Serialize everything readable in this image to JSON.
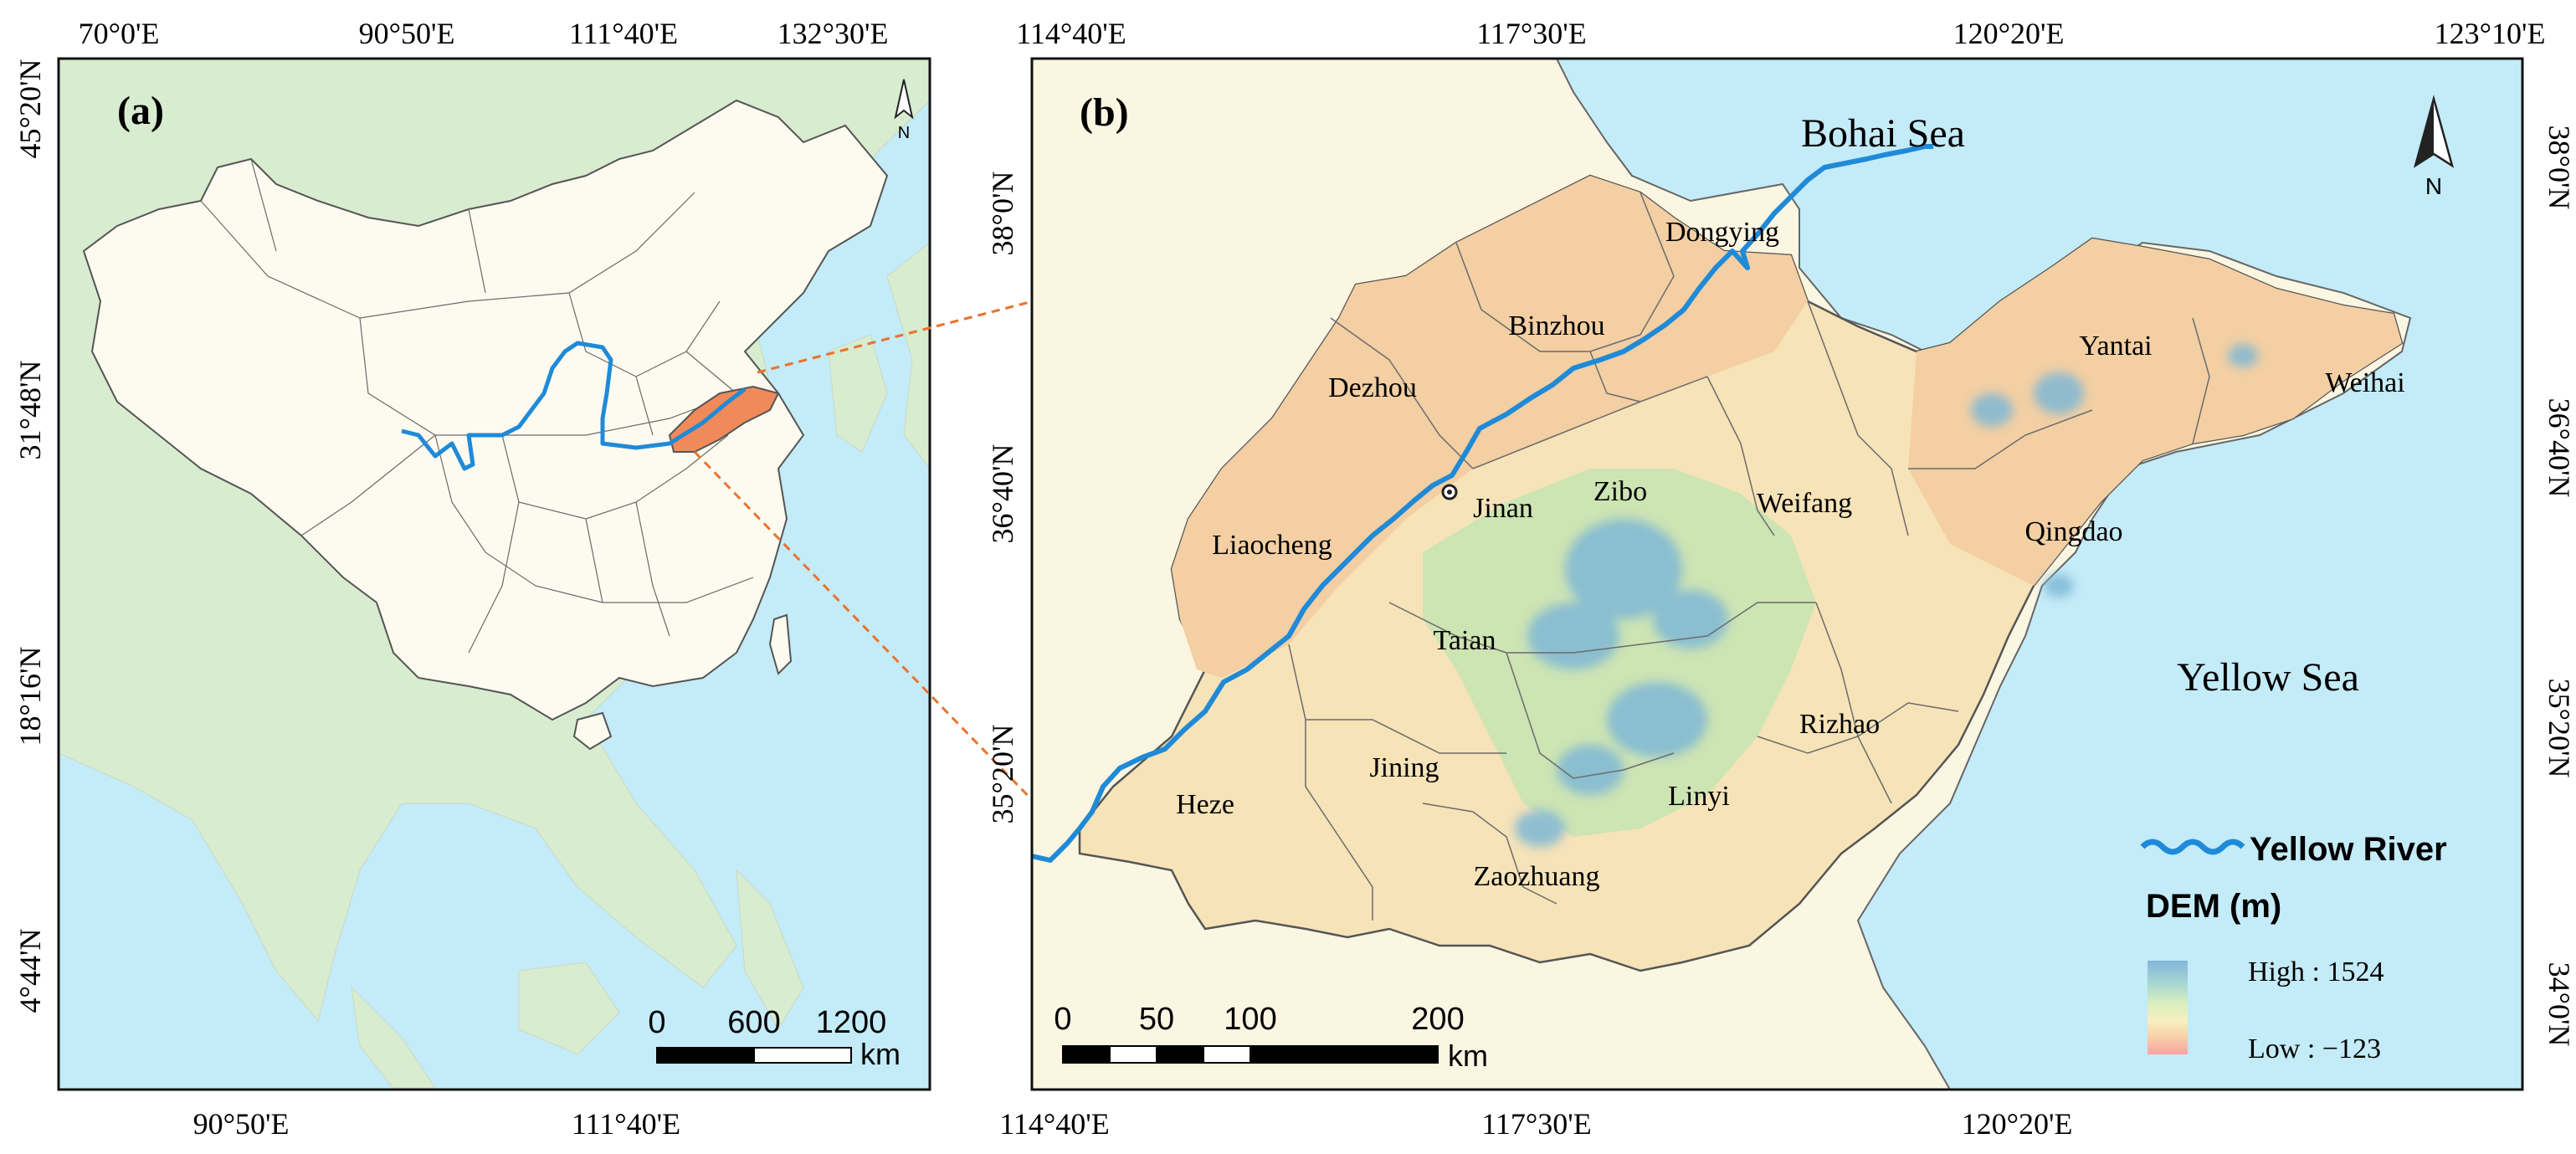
{
  "panel_a": {
    "label": "(a)",
    "top_lon_labels": [
      "70°0'E",
      "90°50'E",
      "111°40'E",
      "132°30'E"
    ],
    "bottom_lon_labels": [
      "90°50'E",
      "111°40'E"
    ],
    "left_lat_labels": [
      "45°20'N",
      "31°48'N",
      "18°16'N",
      "4°44'N"
    ],
    "north_label": "N",
    "scale_ticks": [
      "0",
      "600",
      "1200"
    ],
    "scale_unit": "km",
    "colors": {
      "land": "#fdfbf0",
      "sea": "#c4ebf8",
      "foreign_land": "#d8ecd0",
      "shandong": "#f08a5a",
      "river": "#1f8ad8"
    }
  },
  "panel_b": {
    "label": "(b)",
    "top_lon_labels": [
      "114°40'E",
      "117°30'E",
      "120°20'E",
      "123°10'E"
    ],
    "bottom_lon_labels": [
      "114°40'E",
      "117°30'E",
      "120°20'E"
    ],
    "left_lat_labels": [
      "38°0'N",
      "36°40'N",
      "35°20'N"
    ],
    "right_lat_labels": [
      "38°0'N",
      "36°40'N",
      "35°20'N",
      "34°0'N"
    ],
    "seas": [
      "Bohai Sea",
      "Yellow Sea"
    ],
    "cities": [
      "Dongying",
      "Binzhou",
      "Dezhou",
      "Jinan",
      "Zibo",
      "Weifang",
      "Liaocheng",
      "Taian",
      "Heze",
      "Jining",
      "Linyi",
      "Zaozhuang",
      "Rizhao",
      "Qingdao",
      "Yantai",
      "Weihai"
    ],
    "north_label": "N",
    "scale_ticks": [
      "0",
      "50",
      "100",
      "200"
    ],
    "scale_unit": "km",
    "legend": {
      "river_label": "Yellow River",
      "dem_title": "DEM (m)",
      "high_label": "High : 1524",
      "low_label": "Low : −123"
    },
    "colors": {
      "land": "#fbf6e2",
      "sea": "#c4ebf8",
      "lowland": "#f3cfa3",
      "plain": "#f6e3b8",
      "hill": "#c9e3b2",
      "mountain": "#7fb8d6",
      "river": "#1f8ad8",
      "dem_high": "#82b6dc",
      "dem_low": "#f7a9a9"
    }
  },
  "connector_color": "#e8742f"
}
